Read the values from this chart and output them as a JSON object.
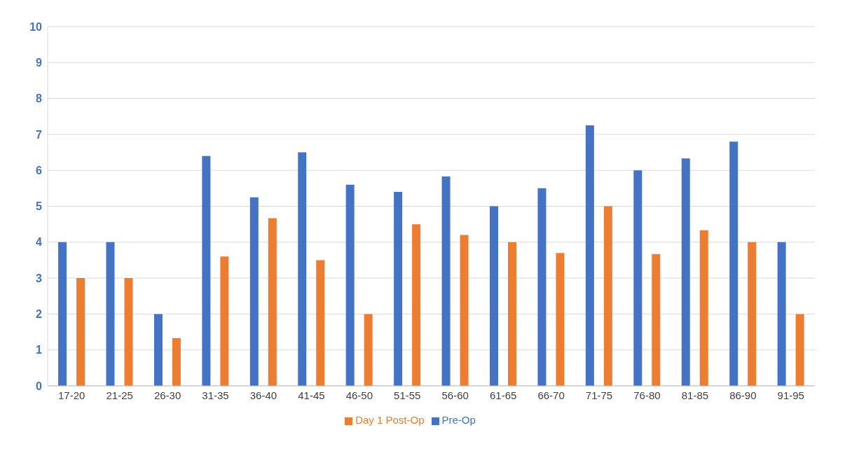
{
  "chart_data": {
    "type": "bar",
    "categories": [
      "17-20",
      "21-25",
      "26-30",
      "31-35",
      "36-40",
      "41-45",
      "46-50",
      "51-55",
      "56-60",
      "61-65",
      "66-70",
      "71-75",
      "76-80",
      "81-85",
      "86-90",
      "91-95"
    ],
    "series": [
      {
        "name": "Pre-Op",
        "color": "#4472c4",
        "values": [
          4,
          4,
          2,
          6.4,
          5.25,
          6.5,
          5.6,
          5.4,
          5.83,
          5,
          5.5,
          7.25,
          6,
          6.33,
          6.8,
          4
        ]
      },
      {
        "name": "Day 1 Post-Op",
        "color": "#ed7d31",
        "values": [
          3,
          3,
          1.33,
          3.6,
          4.67,
          3.5,
          2,
          4.5,
          4.2,
          4,
          3.7,
          5,
          3.67,
          4.33,
          4,
          2
        ]
      }
    ],
    "ylim": [
      0,
      10
    ],
    "yticks": [
      0,
      1,
      2,
      3,
      4,
      5,
      6,
      7,
      8,
      9,
      10
    ],
    "grid": "y",
    "legend": "bottom"
  }
}
